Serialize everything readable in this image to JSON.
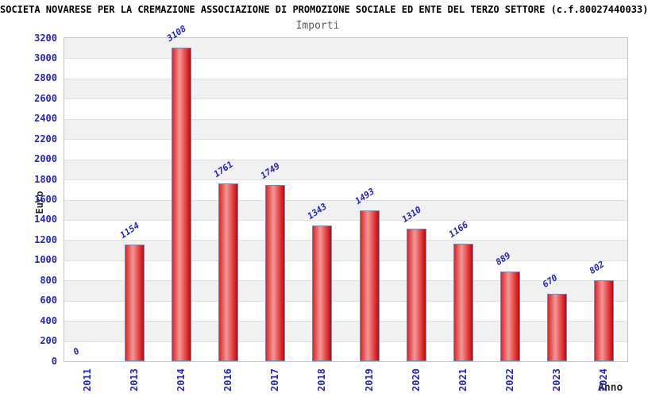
{
  "header": {
    "title": "SOCIETA NOVARESE PER LA CREMAZIONE ASSOCIAZIONE DI PROMOZIONE SOCIALE ED ENTE DEL TERZO SETTORE (c.f.80027440033)"
  },
  "chart_data": {
    "type": "bar",
    "title": "Importi",
    "categories": [
      "2011",
      "2013",
      "2014",
      "2016",
      "2017",
      "2018",
      "2019",
      "2020",
      "2021",
      "2022",
      "2023",
      "2024"
    ],
    "values": [
      0,
      1154,
      3108,
      1761,
      1749,
      1343,
      1493,
      1310,
      1166,
      889,
      670,
      802
    ],
    "xlabel": "Anno",
    "ylabel": "Euro",
    "ylim": [
      0,
      3200
    ],
    "ytick_step": 200,
    "legend": "none",
    "grid": "horizontal-bands",
    "colors": {
      "tick_label": "#2424c8",
      "value_label": "#2424c8",
      "bar_edge_dark": "#d00000",
      "bar_edge_left": "#de2424",
      "bar_highlight": "#f29898",
      "bar_border": "#4f97d7",
      "band_gray": "#f1f1f1",
      "gridline": "#e0e0e0",
      "axis_title": "#2b2b2b",
      "title_color": "#000000",
      "subtitle_color": "#5a5a5a"
    }
  }
}
